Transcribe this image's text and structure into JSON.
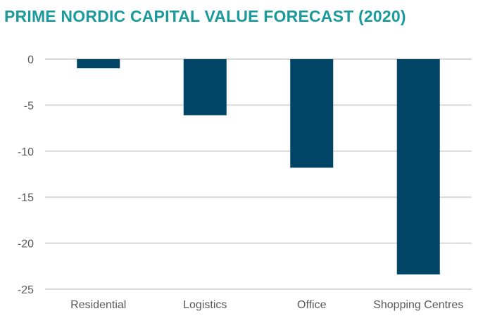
{
  "chart_data": {
    "type": "bar",
    "title": "PRIME NORDIC CAPITAL VALUE FORECAST (2020)",
    "categories": [
      "Residential",
      "Logistics",
      "Office",
      "Shopping Centres"
    ],
    "values": [
      -1.0,
      -6.1,
      -11.8,
      -23.4
    ],
    "ylim": [
      -25,
      0
    ],
    "yticks": [
      0,
      -5,
      -10,
      -15,
      -20,
      -25
    ],
    "xlabel": "",
    "ylabel": "",
    "grid": true,
    "legend": "none",
    "colors": {
      "bar": "#004565",
      "title": "#1a9a9a",
      "grid": "#d9d9d9",
      "text": "#595959"
    }
  }
}
